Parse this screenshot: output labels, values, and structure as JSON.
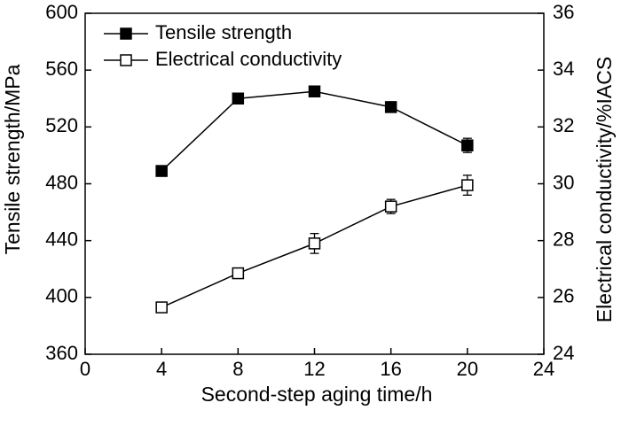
{
  "chart_data": {
    "type": "line",
    "title": "",
    "xlabel": "Second-step aging time/h",
    "ylabel_left": "Tensile strength/MPa",
    "ylabel_right": "Electrical conductivity/%IACS",
    "xlim": [
      0,
      24
    ],
    "ylim_left": [
      360,
      600
    ],
    "ylim_right": [
      24,
      36
    ],
    "x_ticks": [
      "0",
      "4",
      "8",
      "12",
      "16",
      "20",
      "24"
    ],
    "y_ticks_left": [
      "360",
      "400",
      "440",
      "480",
      "520",
      "560",
      "600"
    ],
    "y_ticks_right": [
      "24",
      "26",
      "28",
      "30",
      "32",
      "34",
      "36"
    ],
    "legend_position": "top-left",
    "grid": false,
    "series": [
      {
        "name": "Tensile strength",
        "axis": "left",
        "marker": "filled-square",
        "color": "#000000",
        "x": [
          4,
          8,
          12,
          16,
          20
        ],
        "y": [
          489,
          540,
          545,
          534,
          507
        ],
        "error": [
          2,
          2,
          2,
          2,
          5
        ]
      },
      {
        "name": "Electrical conductivity",
        "axis": "right",
        "marker": "open-square",
        "color": "#000000",
        "x": [
          4,
          8,
          12,
          16,
          20
        ],
        "y": [
          25.65,
          26.85,
          27.9,
          29.2,
          29.95
        ],
        "error": [
          0.1,
          0.15,
          0.35,
          0.25,
          0.35
        ]
      }
    ]
  }
}
